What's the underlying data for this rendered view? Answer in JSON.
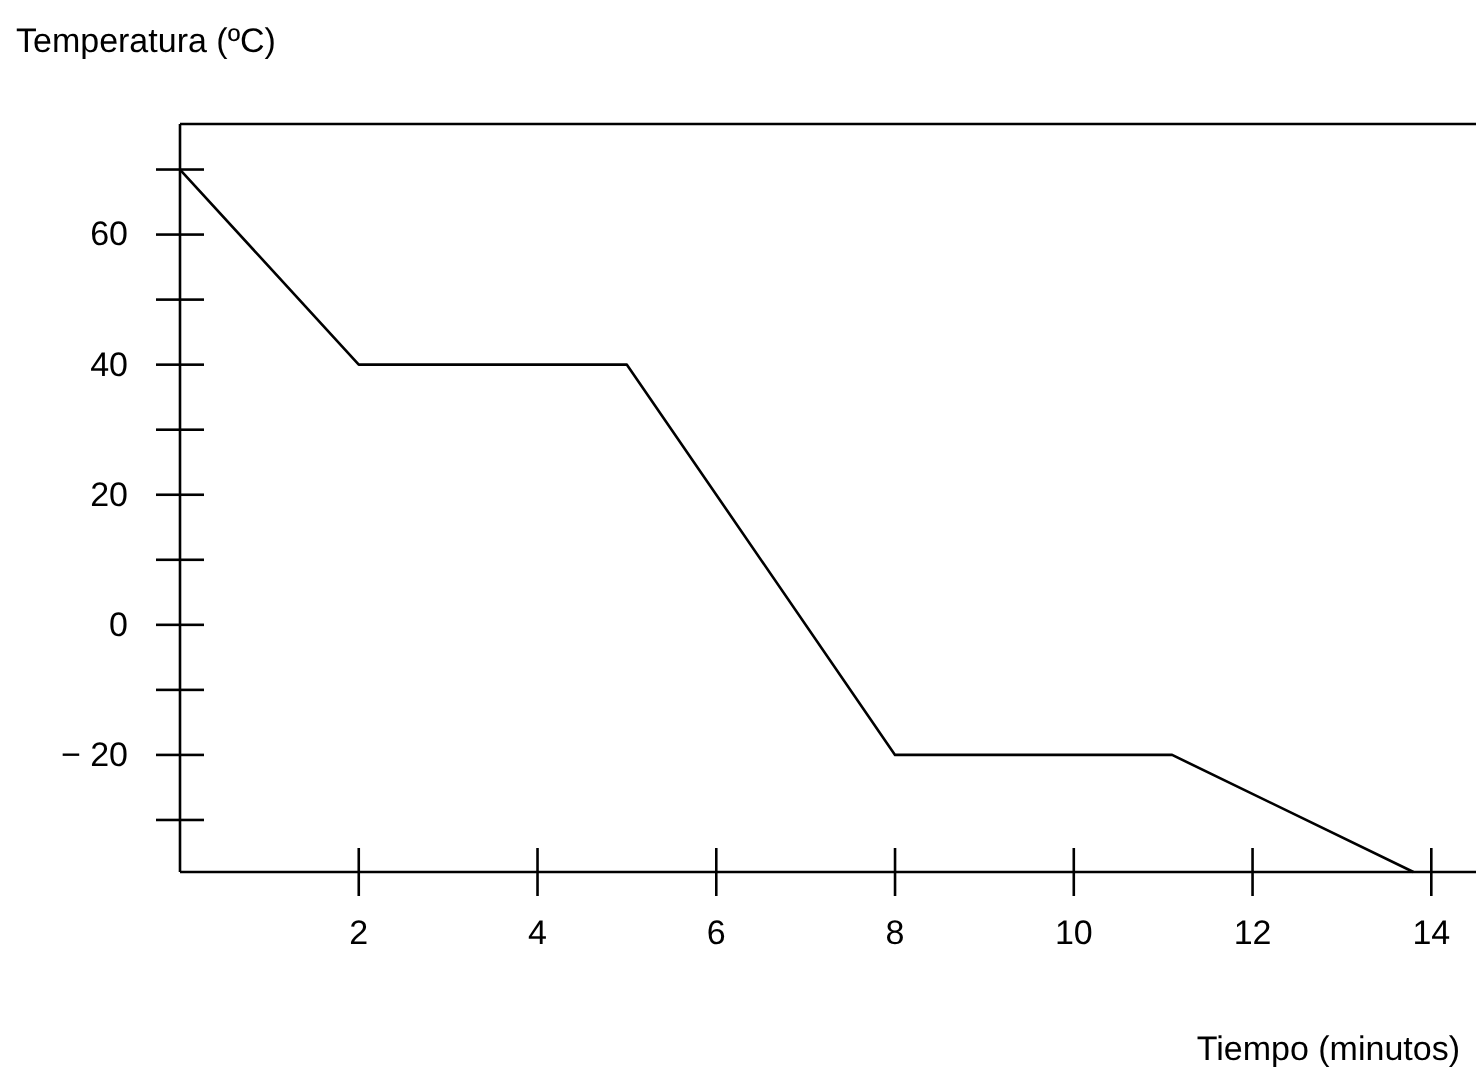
{
  "chart_data": {
    "type": "line",
    "xlabel": "Tiempo (minutos)",
    "ylabel": "Temperatura (ºC)",
    "x": [
      0,
      2,
      5,
      8,
      11.1,
      13.8
    ],
    "series": [
      {
        "color": "#000000",
        "values": [
          70,
          40,
          40,
          -20,
          -20,
          -38
        ]
      }
    ],
    "xlim": [
      0,
      14.5
    ],
    "xticks": [
      2,
      4,
      6,
      8,
      10,
      12,
      14
    ],
    "ylim": [
      -38,
      77
    ],
    "yticks": [
      {
        "value": 70,
        "label": null
      },
      60,
      {
        "value": 50,
        "label": null
      },
      40,
      {
        "value": 30,
        "label": null
      },
      20,
      {
        "value": 10,
        "label": null
      },
      0,
      {
        "value": -10,
        "label": null
      },
      {
        "value": -20,
        "label": "− 20"
      },
      {
        "value": -30,
        "label": null
      }
    ],
    "grid": false,
    "marker": "none",
    "line_style": "solid"
  }
}
